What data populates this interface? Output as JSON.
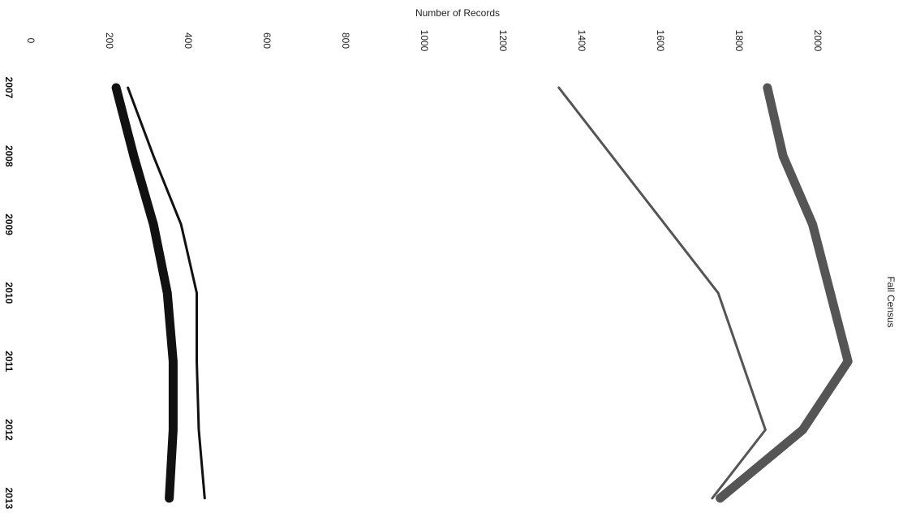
{
  "chart_data": {
    "type": "line",
    "title": "Fall Census",
    "ylabel": "Number of Records",
    "xlabel": "",
    "categories": [
      "2007",
      "2008",
      "2009",
      "2010",
      "2011",
      "2012",
      "2013"
    ],
    "yticks": [
      "0",
      "200",
      "400",
      "600",
      "800",
      "1000",
      "1200",
      "1400",
      "1600",
      "1800",
      "2000"
    ],
    "ylim": [
      0,
      2150
    ],
    "grid": false,
    "orientation": "rotated-90-clockwise",
    "series": [
      {
        "values": [
          1880,
          1920,
          1995,
          null,
          2085,
          1970,
          1760
        ],
        "color": "#555555",
        "style": "thick"
      },
      {
        "values": [
          1350,
          null,
          null,
          1755,
          null,
          1875,
          1740
        ],
        "color": "#555555",
        "style": "thin"
      },
      {
        "values": [
          225,
          270,
          320,
          355,
          370,
          370,
          360
        ],
        "color": "#111111",
        "style": "thick"
      },
      {
        "values": [
          255,
          320,
          390,
          430,
          430,
          435,
          450
        ],
        "color": "#111111",
        "style": "thin"
      }
    ]
  }
}
